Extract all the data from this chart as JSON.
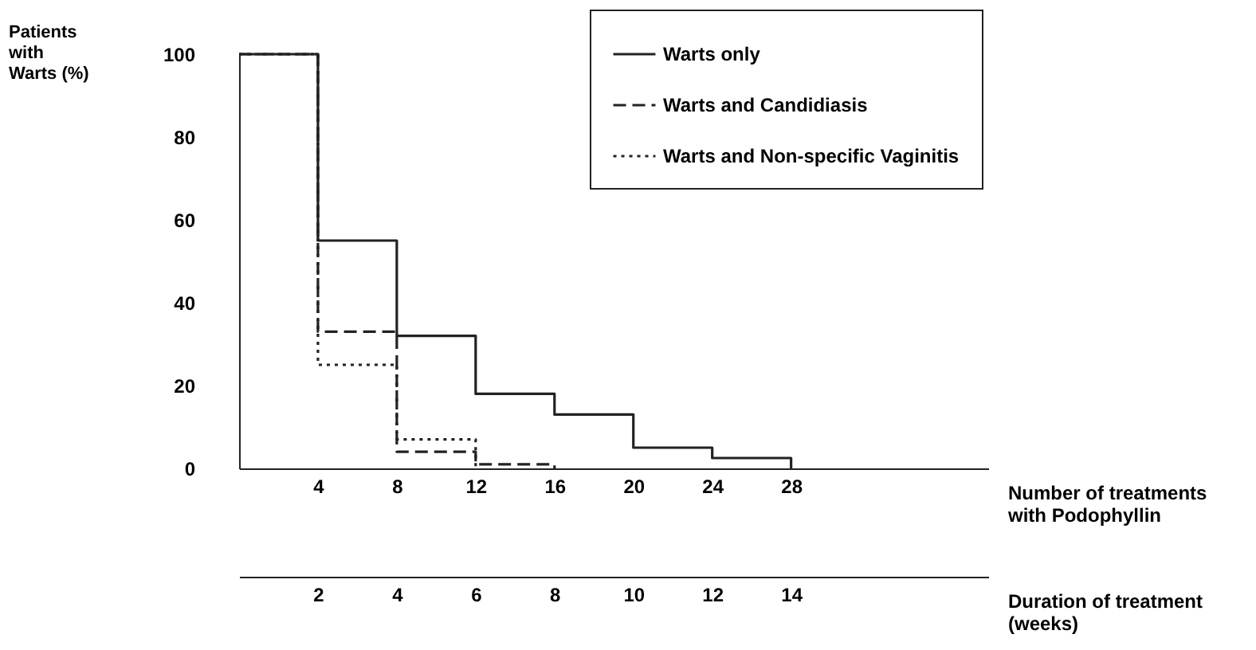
{
  "chart_data": {
    "type": "step",
    "ylabel": "Patients\nwith\nWarts (%)",
    "xlabel": "Number of treatments\nwith Podophyllin",
    "x2label": "Duration of treatment\n(weeks)",
    "xlim": [
      0,
      38
    ],
    "xticks": [
      4,
      8,
      12,
      16,
      20,
      24,
      28
    ],
    "x2lim": [
      0,
      19
    ],
    "x2ticks": [
      2,
      4,
      6,
      8,
      10,
      12,
      14
    ],
    "ylim": [
      0,
      100
    ],
    "yticks": [
      0,
      20,
      40,
      60,
      80,
      100
    ],
    "series": [
      {
        "name": "Warts only",
        "color": "#222222",
        "line_style": "solid",
        "x": [
          0,
          4,
          8,
          12,
          16,
          20,
          24,
          28
        ],
        "values": [
          100,
          55,
          32,
          18,
          13,
          5,
          2.5,
          0
        ]
      },
      {
        "name": "Warts and Candidiasis",
        "color": "#222222",
        "line_style": "dashed",
        "x": [
          0,
          4,
          8,
          12,
          16
        ],
        "values": [
          100,
          33,
          4,
          1,
          0
        ]
      },
      {
        "name": "Warts and Non-specific Vaginitis",
        "color": "#222222",
        "line_style": "dotted",
        "x": [
          0,
          4,
          8,
          12
        ],
        "values": [
          100,
          25,
          7,
          0
        ]
      }
    ],
    "grid": false,
    "legend": "top right",
    "marker": "none"
  }
}
